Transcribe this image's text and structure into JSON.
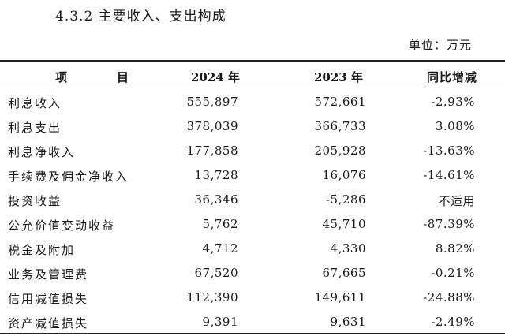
{
  "heading": {
    "section_title": "4.3.2  主要收入、支出构成",
    "unit": "单位：万元"
  },
  "table": {
    "columns": [
      "项　目",
      "2024 年",
      "2023 年",
      "同比增减"
    ],
    "rows": [
      {
        "item": "利息收入",
        "y2024": "555,897",
        "y2023": "572,661",
        "change": "-2.93%"
      },
      {
        "item": "利息支出",
        "y2024": "378,039",
        "y2023": "366,733",
        "change": "3.08%"
      },
      {
        "item": "利息净收入",
        "y2024": "177,858",
        "y2023": "205,928",
        "change": "-13.63%"
      },
      {
        "item": "手续费及佣金净收入",
        "y2024": "13,728",
        "y2023": "16,076",
        "change": "-14.61%"
      },
      {
        "item": "投资收益",
        "y2024": "36,346",
        "y2023": "-5,286",
        "change": "不适用"
      },
      {
        "item": "公允价值变动收益",
        "y2024": "5,762",
        "y2023": "45,710",
        "change": "-87.39%"
      },
      {
        "item": "税金及附加",
        "y2024": "4,712",
        "y2023": "4,330",
        "change": "8.82%"
      },
      {
        "item": "业务及管理费",
        "y2024": "67,520",
        "y2023": "67,665",
        "change": "-0.21%"
      },
      {
        "item": "信用减值损失",
        "y2024": "112,390",
        "y2023": "149,611",
        "change": "-24.88%"
      },
      {
        "item": "资产减值损失",
        "y2024": "9,391",
        "y2023": "9,631",
        "change": "-2.49%"
      }
    ]
  }
}
